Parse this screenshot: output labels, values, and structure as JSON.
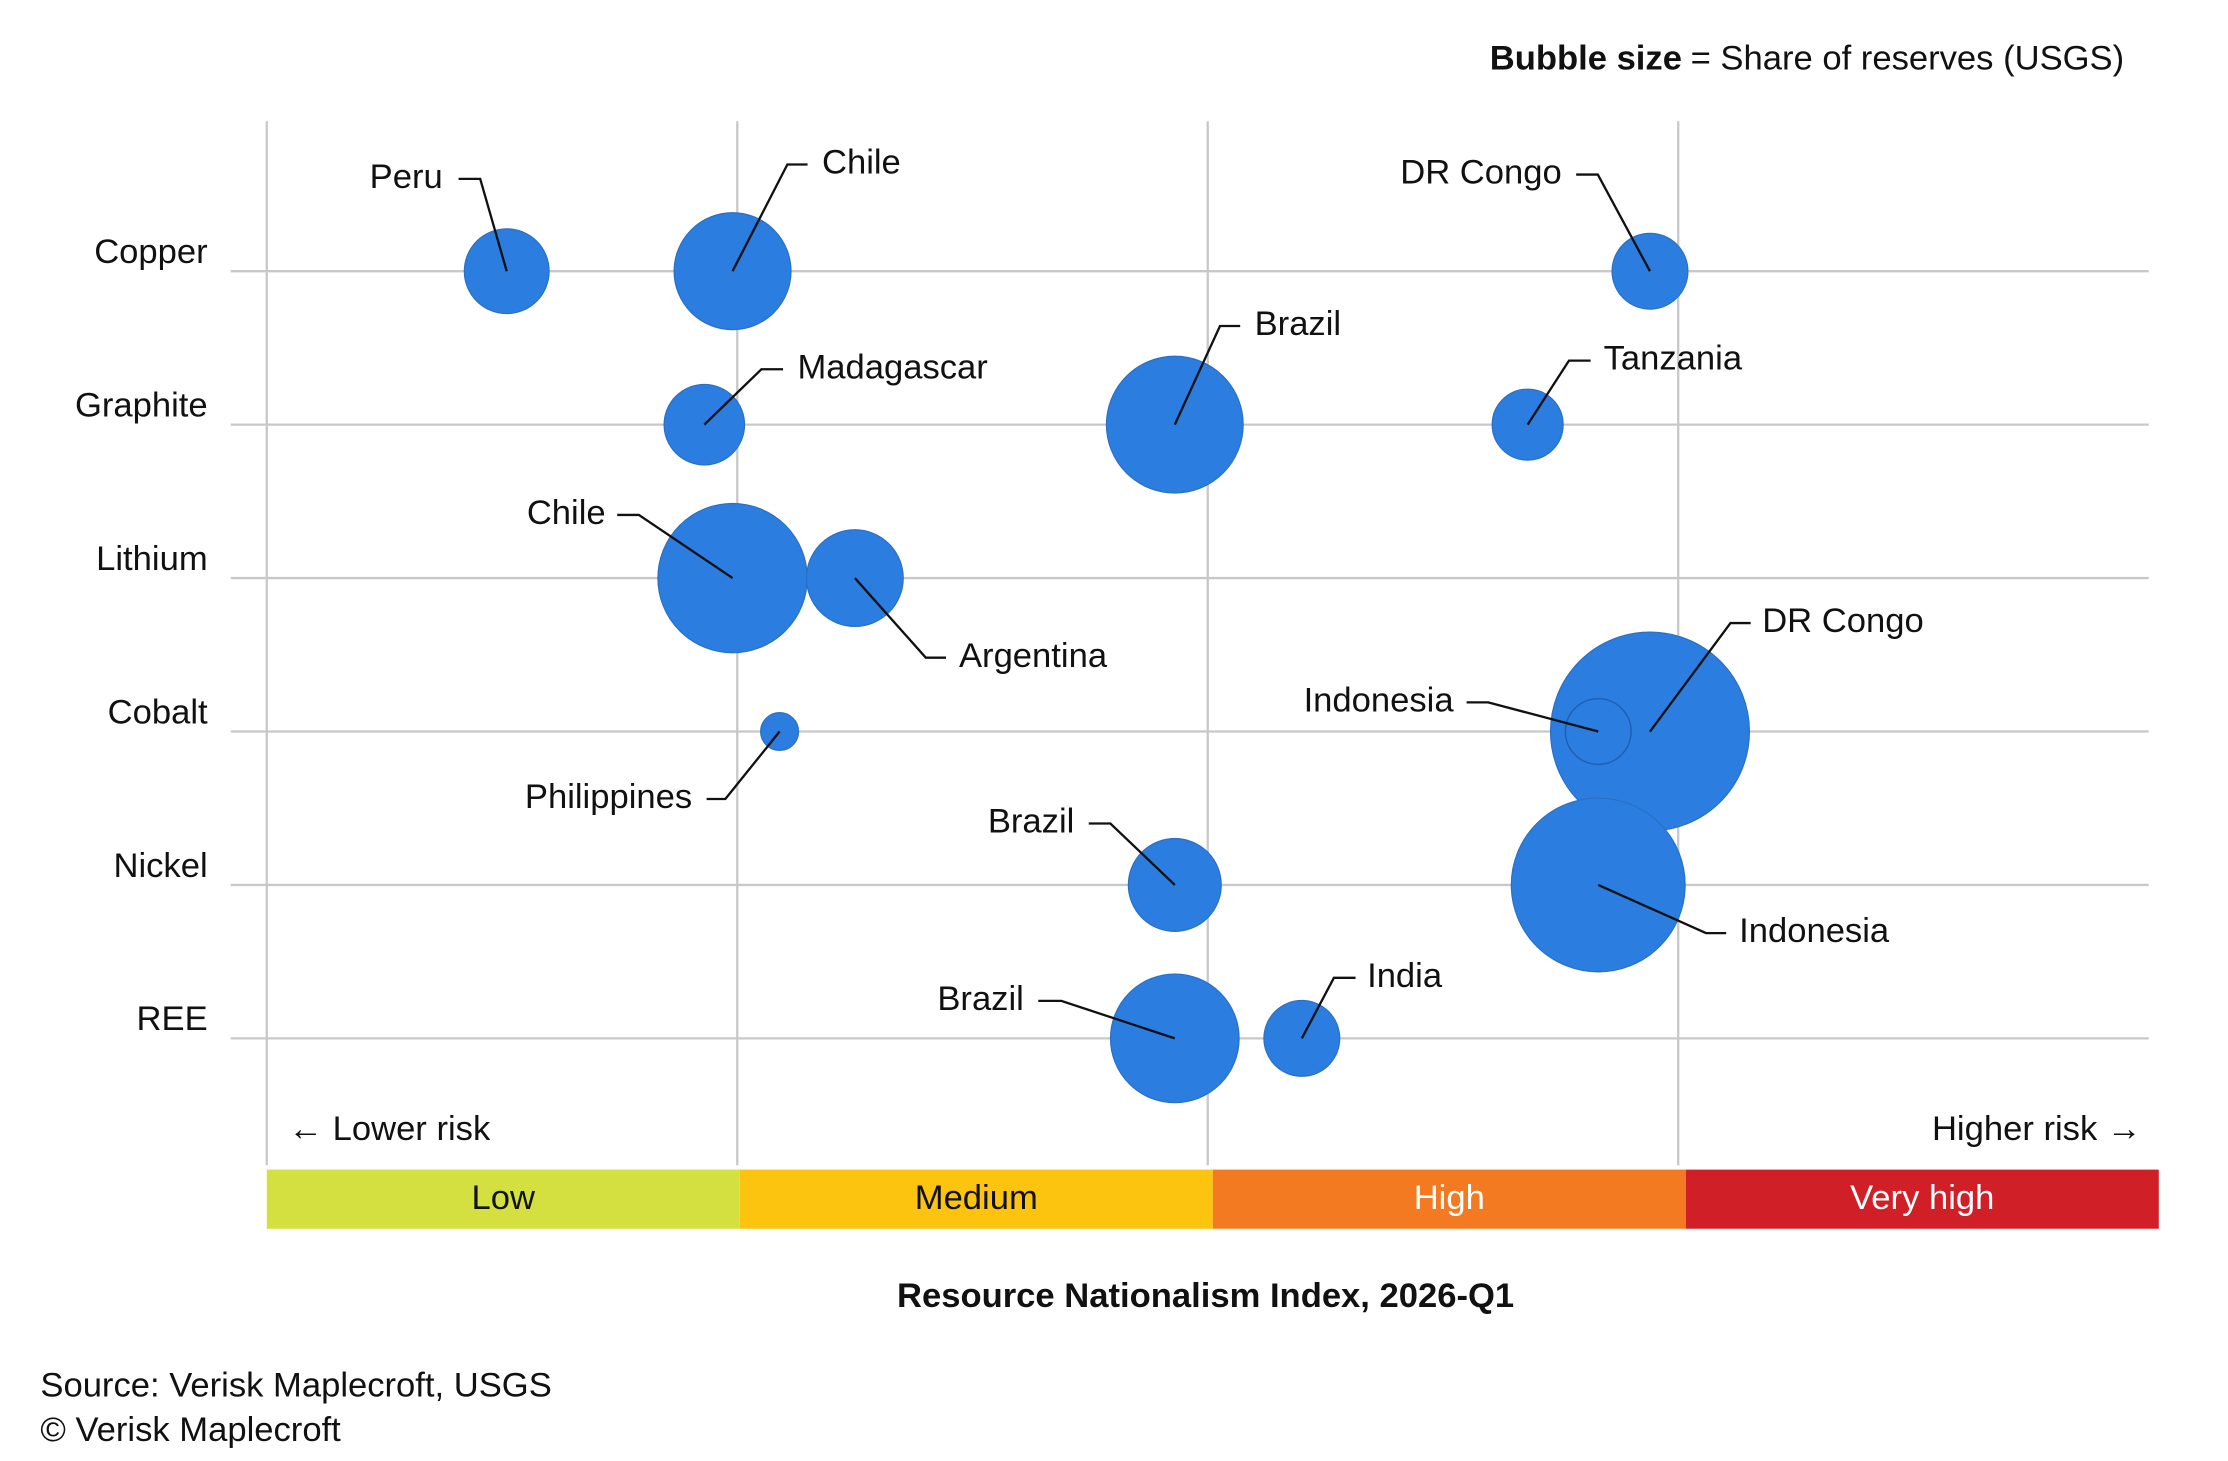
{
  "chart_data": {
    "type": "bubble",
    "size_legend": {
      "label": "Bubble size",
      "text": "= Share of reserves (USGS)"
    },
    "categories": [
      "Copper",
      "Graphite",
      "Lithium",
      "Cobalt",
      "Nickel",
      "REE"
    ],
    "xlim": [
      0,
      4
    ],
    "bands": [
      {
        "label": "Low",
        "color": "#d4e03f"
      },
      {
        "label": "Medium",
        "color": "#fcc30f"
      },
      {
        "label": "High",
        "color": "#f47a22"
      },
      {
        "label": "Very high",
        "color": "#d01f26"
      }
    ],
    "low_note": "← Lower risk",
    "high_note": "Higher risk →",
    "xlabel": "Resource Nationalism Index, 2026-Q1",
    "color": "#2b7de0",
    "grid": true,
    "points": [
      {
        "label": "Peru",
        "category": 0,
        "x": 0.51,
        "size": 10
      },
      {
        "label": "Chile",
        "category": 0,
        "x": 0.99,
        "size": 19
      },
      {
        "label": "DR Congo",
        "category": 0,
        "x": 2.94,
        "size": 8
      },
      {
        "label": "Madagascar",
        "category": 1,
        "x": 0.93,
        "size": 9
      },
      {
        "label": "Brazil",
        "category": 1,
        "x": 1.93,
        "size": 26
      },
      {
        "label": "Tanzania",
        "category": 1,
        "x": 2.68,
        "size": 7
      },
      {
        "label": "Chile",
        "category": 2,
        "x": 0.99,
        "size": 31
      },
      {
        "label": "Argentina",
        "category": 2,
        "x": 1.25,
        "size": 13
      },
      {
        "label": "Philippines",
        "category": 3,
        "x": 1.09,
        "size": 2
      },
      {
        "label": "DR Congo",
        "category": 3,
        "x": 2.94,
        "size": 55
      },
      {
        "label": "Indonesia",
        "category": 3,
        "x": 2.83,
        "size": 6
      },
      {
        "label": "Brazil",
        "category": 4,
        "x": 1.93,
        "size": 12
      },
      {
        "label": "Indonesia",
        "category": 4,
        "x": 2.83,
        "size": 42
      },
      {
        "label": "Brazil",
        "category": 5,
        "x": 1.93,
        "size": 23
      },
      {
        "label": "India",
        "category": 5,
        "x": 2.2,
        "size": 8
      }
    ],
    "source": "Source: Verisk Maplecroft, USGS",
    "copyright": "© Verisk Maplecroft"
  }
}
